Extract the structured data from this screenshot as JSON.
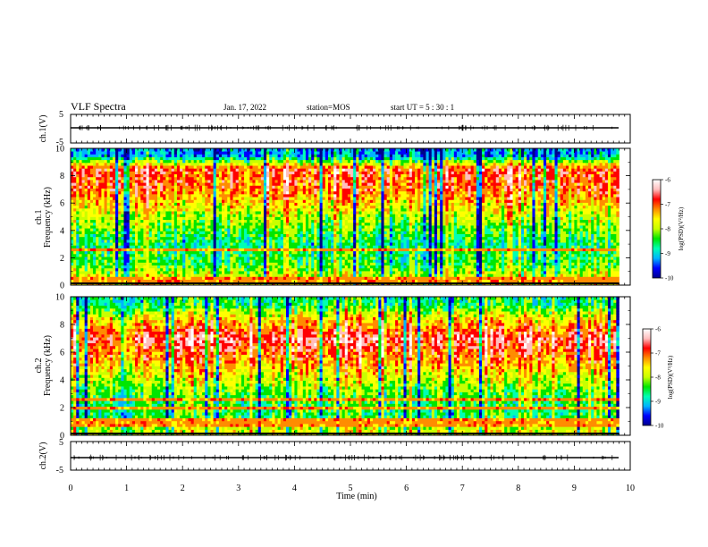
{
  "header": {
    "title": "VLF Spectra",
    "date": "Jan. 17, 2022",
    "station": "station=MOS",
    "start_ut": "start UT =  5 : 30 : 1"
  },
  "chart_data": [
    {
      "type": "line",
      "panel": "ch1-waveform",
      "ylabel": "ch.1(V)",
      "ylim": [
        -5,
        5
      ],
      "yticks": [
        "5",
        "-5"
      ],
      "xlim": [
        0,
        10
      ],
      "series": [
        {
          "values": [
            0,
            0
          ]
        }
      ]
    },
    {
      "type": "heatmap",
      "panel": "ch1-spectrogram",
      "ylabel": "ch.1\nFrequency (kHz)",
      "ylim": [
        0,
        10
      ],
      "yticks": [
        "0",
        "2",
        "4",
        "6",
        "8",
        "10"
      ],
      "xlim": [
        0,
        10
      ],
      "colorbar": {
        "label": "log(PSD)(V²/Hz)",
        "ticks": [
          "-6",
          "-7",
          "-8",
          "-9",
          "-10"
        ],
        "range": [
          -10,
          -6
        ]
      },
      "mean_level_by_khz": [
        {
          "khz": 0.3,
          "level": -7.6
        },
        {
          "khz": 1.5,
          "level": -8.4
        },
        {
          "khz": 3.0,
          "level": -8.7
        },
        {
          "khz": 5.0,
          "level": -8.0
        },
        {
          "khz": 7.0,
          "level": -7.1
        },
        {
          "khz": 8.5,
          "level": -6.9
        },
        {
          "khz": 9.5,
          "level": -9.3
        }
      ]
    },
    {
      "type": "heatmap",
      "panel": "ch2-spectrogram",
      "ylabel": "ch.2\nFrequency (kHz)",
      "ylim": [
        0,
        10
      ],
      "yticks": [
        "0",
        "2",
        "4",
        "6",
        "8",
        "10"
      ],
      "xlim": [
        0,
        10
      ],
      "colorbar": {
        "label": "log(PSD)(V²/Hz)",
        "ticks": [
          "-6",
          "-7",
          "-8",
          "-9",
          "-10"
        ],
        "range": [
          -10,
          -6
        ]
      },
      "mean_level_by_khz": [
        {
          "khz": 0.3,
          "level": -7.8
        },
        {
          "khz": 1.5,
          "level": -8.5
        },
        {
          "khz": 3.0,
          "level": -8.3
        },
        {
          "khz": 5.0,
          "level": -7.4
        },
        {
          "khz": 7.0,
          "level": -6.6
        },
        {
          "khz": 8.5,
          "level": -7.6
        },
        {
          "khz": 9.5,
          "level": -8.6
        }
      ]
    },
    {
      "type": "line",
      "panel": "ch2-waveform",
      "ylabel": "ch.2(V)",
      "ylim": [
        -5,
        5
      ],
      "yticks": [
        "5",
        "-5"
      ],
      "xlim": [
        0,
        10
      ],
      "series": [
        {
          "values": [
            0,
            0
          ]
        }
      ]
    }
  ],
  "xaxis": {
    "label": "Time (min)",
    "ticks": [
      "0",
      "1",
      "2",
      "3",
      "4",
      "5",
      "6",
      "7",
      "8",
      "9",
      "10"
    ]
  },
  "colors": {
    "ink": "#000000",
    "colormap": [
      "#00008c",
      "#0000ff",
      "#00b4ff",
      "#00ffb4",
      "#00e600",
      "#c8ff00",
      "#ffff00",
      "#ff8c00",
      "#ff0000",
      "#ffbebe",
      "#ffffff"
    ]
  }
}
